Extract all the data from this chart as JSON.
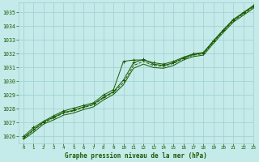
{
  "title": "Graphe pression niveau de la mer (hPa)",
  "background_color": "#c4eaea",
  "grid_color": "#9ecece",
  "line_color": "#1a5c00",
  "text_color": "#1a5c00",
  "xlim": [
    -0.5,
    23
  ],
  "ylim": [
    1025.5,
    1035.7
  ],
  "yticks": [
    1026,
    1027,
    1028,
    1029,
    1030,
    1031,
    1032,
    1033,
    1034,
    1035
  ],
  "xticks": [
    0,
    1,
    2,
    3,
    4,
    5,
    6,
    7,
    8,
    9,
    10,
    11,
    12,
    13,
    14,
    15,
    16,
    17,
    18,
    19,
    20,
    21,
    22,
    23
  ],
  "hours": [
    0,
    1,
    2,
    3,
    4,
    5,
    6,
    7,
    8,
    9,
    10,
    11,
    12,
    13,
    14,
    15,
    16,
    17,
    18,
    19,
    20,
    21,
    22,
    23
  ],
  "line1": [
    1025.9,
    1026.5,
    1027.05,
    1027.4,
    1027.75,
    1027.9,
    1028.15,
    1028.35,
    1028.85,
    1029.25,
    1030.1,
    1031.35,
    1031.6,
    1031.25,
    1031.15,
    1031.35,
    1031.7,
    1031.95,
    1032.05,
    1032.9,
    1033.7,
    1034.45,
    1034.95,
    1035.45
  ],
  "line2": [
    1025.85,
    1026.45,
    1027.0,
    1027.35,
    1027.7,
    1027.85,
    1028.1,
    1028.3,
    1028.8,
    1029.2,
    1029.9,
    1031.15,
    1031.45,
    1031.15,
    1031.1,
    1031.3,
    1031.65,
    1031.9,
    1032.0,
    1032.85,
    1033.65,
    1034.4,
    1034.9,
    1035.4
  ],
  "line3_x": [
    0,
    1,
    2,
    3,
    4,
    5,
    6,
    7,
    8,
    9,
    10,
    11,
    12,
    13,
    14,
    15,
    16,
    17,
    18,
    19,
    20,
    21,
    22,
    23
  ],
  "line3": [
    1026.0,
    1026.65,
    1027.1,
    1027.5,
    1027.85,
    1028.05,
    1028.25,
    1028.45,
    1029.0,
    1029.4,
    1031.45,
    1031.55,
    1031.55,
    1031.35,
    1031.25,
    1031.45,
    1031.75,
    1032.0,
    1032.1,
    1032.95,
    1033.75,
    1034.5,
    1035.0,
    1035.5
  ],
  "line4": [
    1025.8,
    1026.3,
    1026.9,
    1027.2,
    1027.55,
    1027.7,
    1027.95,
    1028.15,
    1028.65,
    1029.05,
    1029.75,
    1030.95,
    1031.25,
    1031.0,
    1030.95,
    1031.15,
    1031.55,
    1031.8,
    1031.9,
    1032.75,
    1033.55,
    1034.3,
    1034.8,
    1035.3
  ],
  "marker_hours": [
    0,
    1,
    2,
    3,
    4,
    5,
    6,
    7,
    8,
    10,
    11,
    12,
    13,
    14,
    15,
    16,
    17,
    18,
    19,
    20,
    21,
    22,
    23
  ]
}
